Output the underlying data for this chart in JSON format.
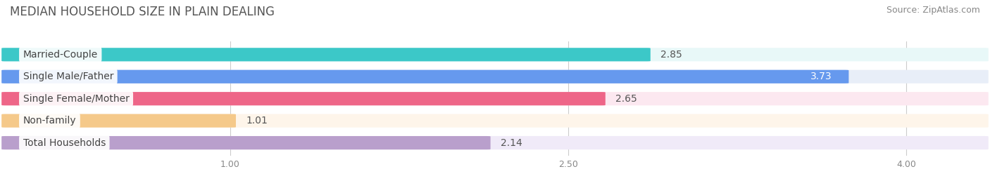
{
  "title": "MEDIAN HOUSEHOLD SIZE IN PLAIN DEALING",
  "source": "Source: ZipAtlas.com",
  "categories": [
    "Married-Couple",
    "Single Male/Father",
    "Single Female/Mother",
    "Non-family",
    "Total Households"
  ],
  "values": [
    2.85,
    3.73,
    2.65,
    1.01,
    2.14
  ],
  "bar_colors": [
    "#3cc8c8",
    "#6699ee",
    "#ee6688",
    "#f5c98a",
    "#b99fcc"
  ],
  "bg_colors": [
    "#e8f8f8",
    "#e8eef8",
    "#fce8f0",
    "#fef5ea",
    "#f0eaf8"
  ],
  "row_bg_color": "#f0f0f0",
  "xlim_left": 0.0,
  "xlim_right": 4.35,
  "xticks": [
    1.0,
    2.5,
    4.0
  ],
  "xtick_labels": [
    "1.00",
    "2.50",
    "4.00"
  ],
  "title_fontsize": 12,
  "source_fontsize": 9,
  "label_fontsize": 10,
  "value_fontsize": 10,
  "bar_height": 0.58,
  "background_color": "#ffffff"
}
